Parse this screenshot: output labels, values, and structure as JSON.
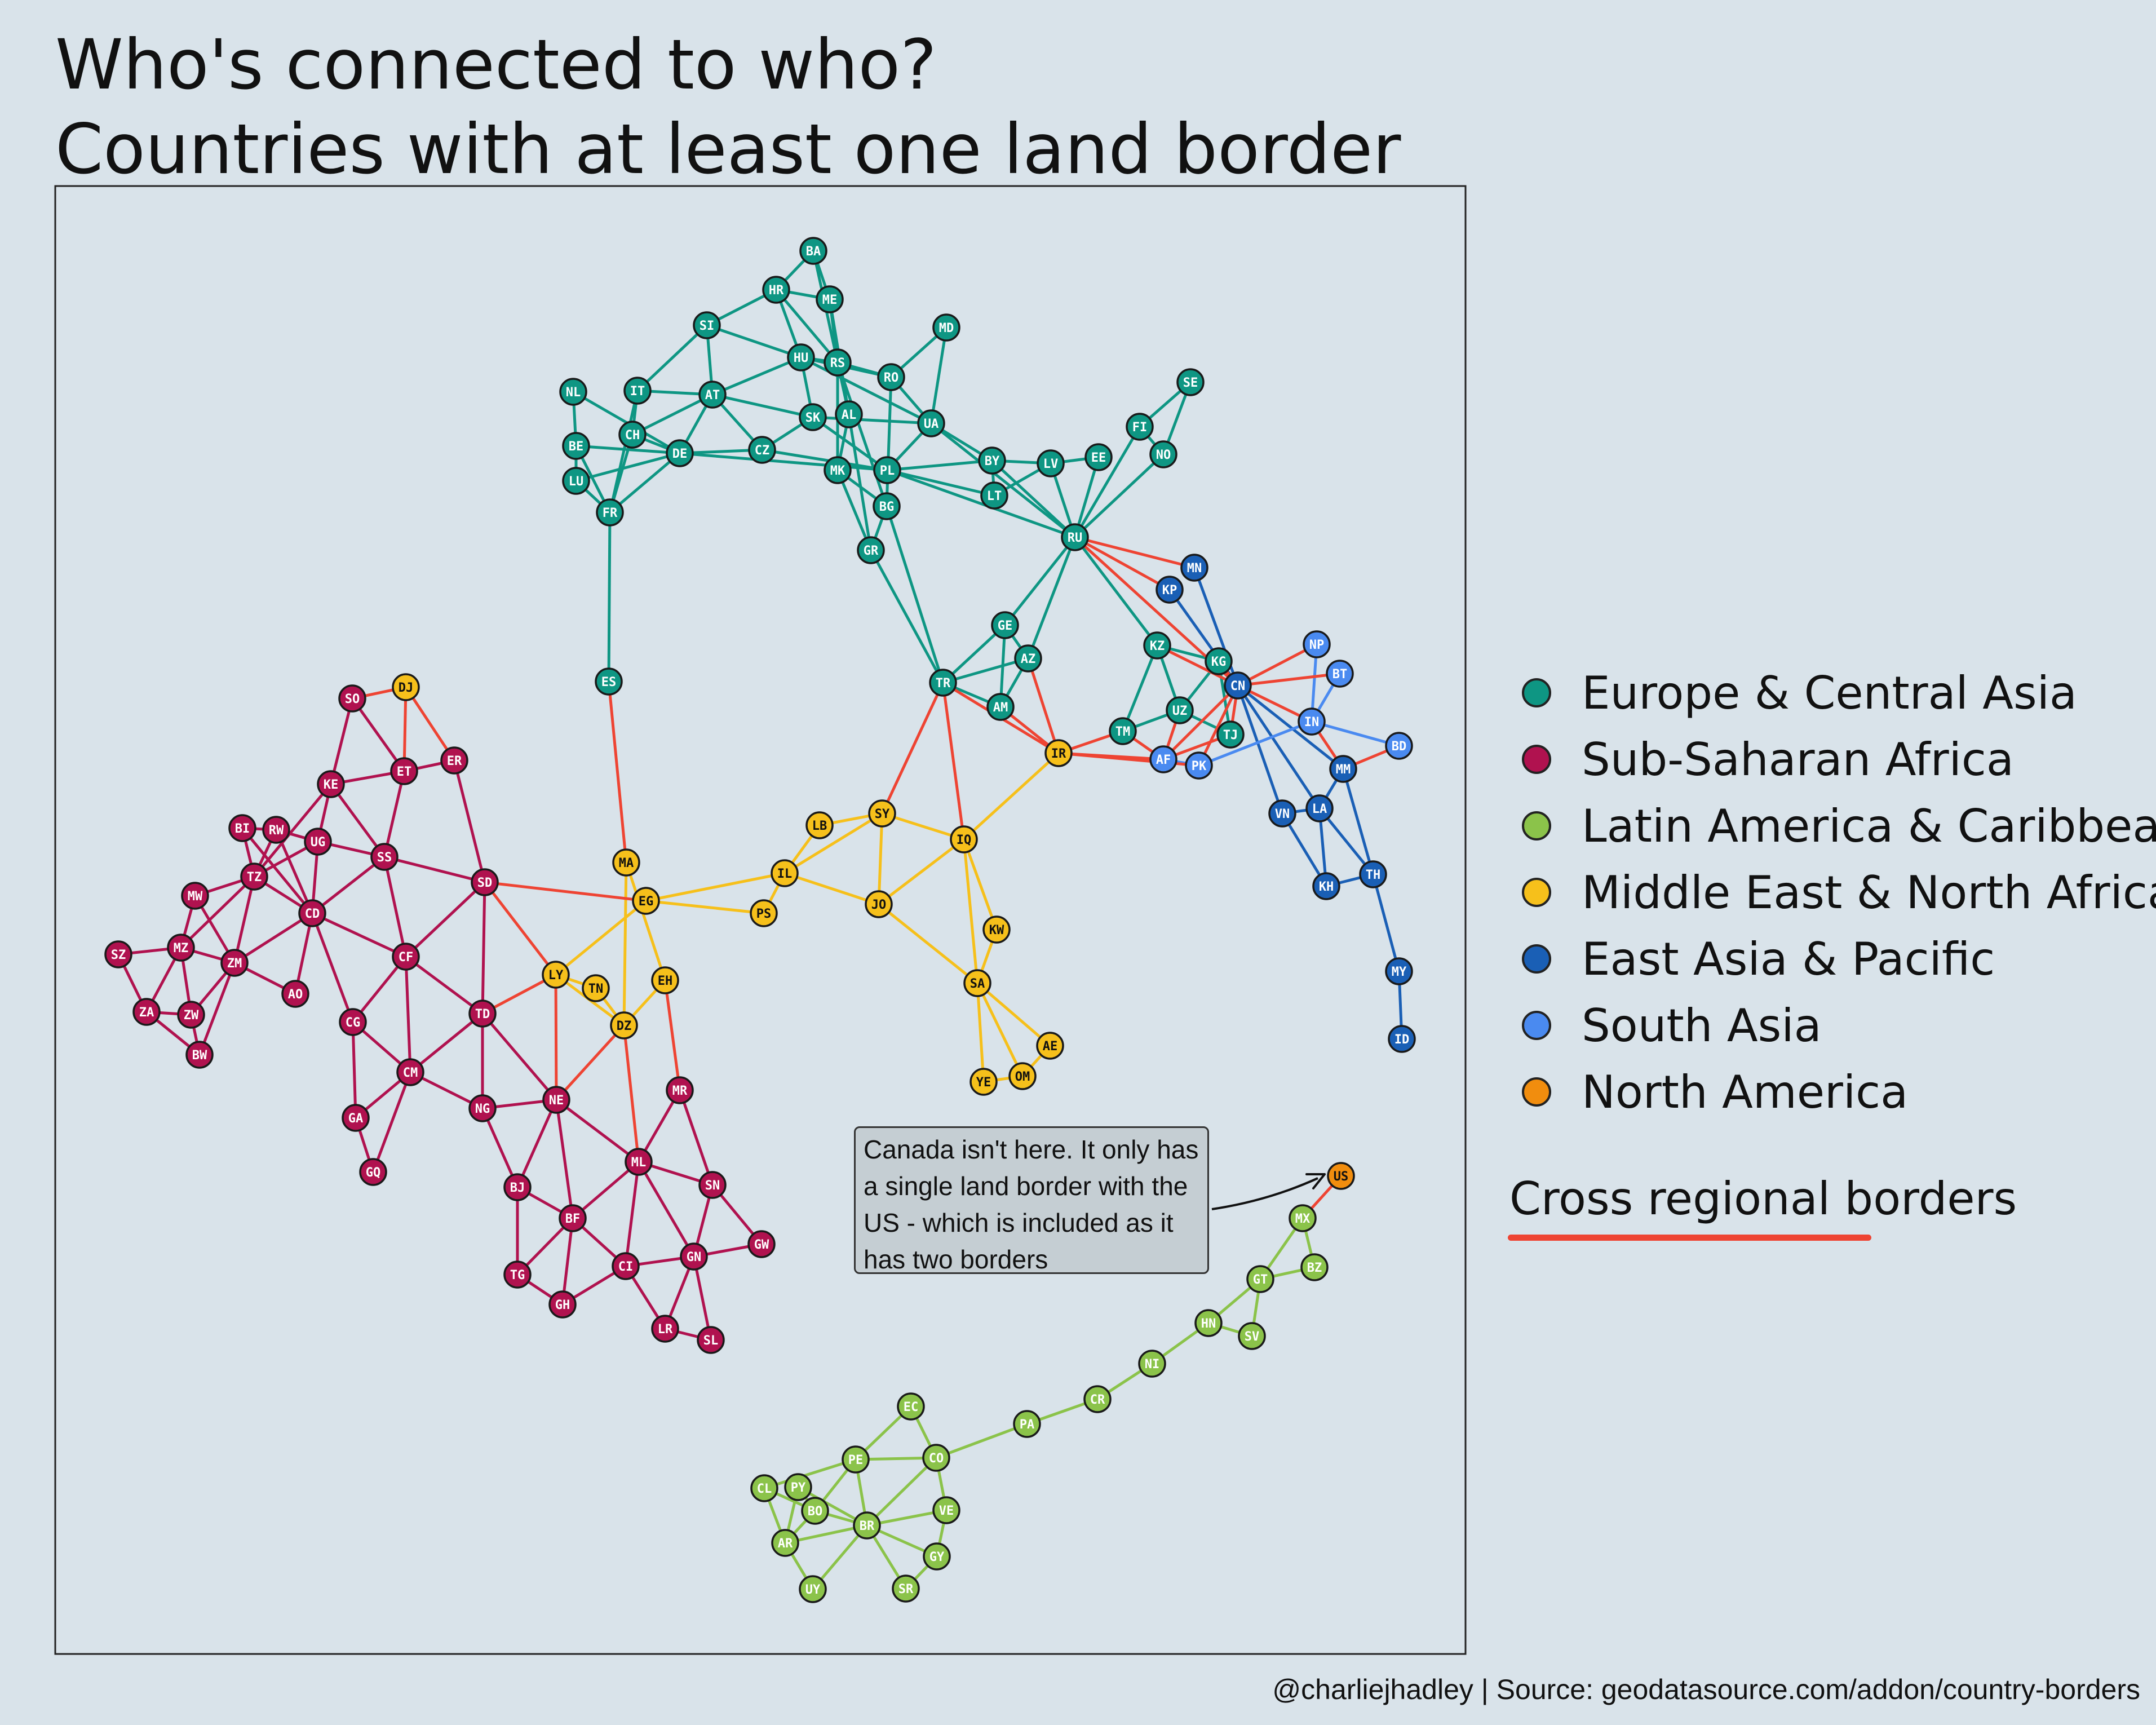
{
  "title": {
    "line1": "Who's connected to who?",
    "line2": "Countries with at least one land border"
  },
  "legend": [
    {
      "label": "Europe & Central Asia",
      "color": "#0e9683"
    },
    {
      "label": "Sub-Saharan Africa",
      "color": "#b0124f"
    },
    {
      "label": "Latin America & Caribbean",
      "color": "#8bc34a"
    },
    {
      "label": "Middle East & North Africa",
      "color": "#f6c01b"
    },
    {
      "label": "East Asia & Pacific",
      "color": "#1a5fb5"
    },
    {
      "label": "South Asia",
      "color": "#4a8af0"
    },
    {
      "label": "North America",
      "color": "#f18d0e"
    }
  ],
  "cross_label": "Cross regional borders",
  "cross_color": "#ee4433",
  "annotation": {
    "lines": [
      "Canada isn't here. It only has",
      "a single land border with the",
      "US - which is included as it",
      "has two borders"
    ]
  },
  "credit": "@charliejhadley | Source: geodatasource.com/addon/country-borders",
  "regions": {
    "ECA": "#0e9683",
    "SSA": "#b0124f",
    "LAC": "#8bc34a",
    "MENA": "#f6c01b",
    "EAP": "#1a5fb5",
    "SA": "#4a8af0",
    "NA": "#f18d0e"
  },
  "nodes": [
    {
      "id": "BA",
      "r": "ECA"
    },
    {
      "id": "HR",
      "r": "ECA"
    },
    {
      "id": "ME",
      "r": "ECA"
    },
    {
      "id": "SI",
      "r": "ECA"
    },
    {
      "id": "HU",
      "r": "ECA"
    },
    {
      "id": "RS",
      "r": "ECA"
    },
    {
      "id": "MD",
      "r": "ECA"
    },
    {
      "id": "RO",
      "r": "ECA"
    },
    {
      "id": "SE",
      "r": "ECA"
    },
    {
      "id": "NL",
      "r": "ECA"
    },
    {
      "id": "IT",
      "r": "ECA"
    },
    {
      "id": "AT",
      "r": "ECA"
    },
    {
      "id": "SK",
      "r": "ECA"
    },
    {
      "id": "AL",
      "r": "ECA"
    },
    {
      "id": "UA",
      "r": "ECA"
    },
    {
      "id": "FI",
      "r": "ECA"
    },
    {
      "id": "BE",
      "r": "ECA"
    },
    {
      "id": "CH",
      "r": "ECA"
    },
    {
      "id": "DE",
      "r": "ECA"
    },
    {
      "id": "CZ",
      "r": "ECA"
    },
    {
      "id": "MK",
      "r": "ECA"
    },
    {
      "id": "PL",
      "r": "ECA"
    },
    {
      "id": "BY",
      "r": "ECA"
    },
    {
      "id": "LV",
      "r": "ECA"
    },
    {
      "id": "EE",
      "r": "ECA"
    },
    {
      "id": "NO",
      "r": "ECA"
    },
    {
      "id": "LU",
      "r": "ECA"
    },
    {
      "id": "LT",
      "r": "ECA"
    },
    {
      "id": "FR",
      "r": "ECA"
    },
    {
      "id": "BG",
      "r": "ECA"
    },
    {
      "id": "RU",
      "r": "ECA"
    },
    {
      "id": "GR",
      "r": "ECA"
    },
    {
      "id": "GE",
      "r": "ECA"
    },
    {
      "id": "KZ",
      "r": "ECA"
    },
    {
      "id": "KG",
      "r": "ECA"
    },
    {
      "id": "AZ",
      "r": "ECA"
    },
    {
      "id": "ES",
      "r": "ECA"
    },
    {
      "id": "TR",
      "r": "ECA"
    },
    {
      "id": "AM",
      "r": "ECA"
    },
    {
      "id": "UZ",
      "r": "ECA"
    },
    {
      "id": "TM",
      "r": "ECA"
    },
    {
      "id": "TJ",
      "r": "ECA"
    },
    {
      "id": "MN",
      "r": "EAP"
    },
    {
      "id": "KP",
      "r": "EAP"
    },
    {
      "id": "CN",
      "r": "EAP"
    },
    {
      "id": "MM",
      "r": "EAP"
    },
    {
      "id": "VN",
      "r": "EAP"
    },
    {
      "id": "LA",
      "r": "EAP"
    },
    {
      "id": "KH",
      "r": "EAP"
    },
    {
      "id": "TH",
      "r": "EAP"
    },
    {
      "id": "MY",
      "r": "EAP"
    },
    {
      "id": "ID",
      "r": "EAP"
    },
    {
      "id": "NP",
      "r": "SA"
    },
    {
      "id": "BT",
      "r": "SA"
    },
    {
      "id": "IN",
      "r": "SA"
    },
    {
      "id": "BD",
      "r": "SA"
    },
    {
      "id": "AF",
      "r": "SA"
    },
    {
      "id": "PK",
      "r": "SA"
    },
    {
      "id": "DJ",
      "r": "MENA"
    },
    {
      "id": "IR",
      "r": "MENA"
    },
    {
      "id": "LB",
      "r": "MENA"
    },
    {
      "id": "SY",
      "r": "MENA"
    },
    {
      "id": "IQ",
      "r": "MENA"
    },
    {
      "id": "MA",
      "r": "MENA"
    },
    {
      "id": "IL",
      "r": "MENA"
    },
    {
      "id": "EG",
      "r": "MENA"
    },
    {
      "id": "PS",
      "r": "MENA"
    },
    {
      "id": "JO",
      "r": "MENA"
    },
    {
      "id": "KW",
      "r": "MENA"
    },
    {
      "id": "LY",
      "r": "MENA"
    },
    {
      "id": "TN",
      "r": "MENA"
    },
    {
      "id": "EH",
      "r": "MENA"
    },
    {
      "id": "DZ",
      "r": "MENA"
    },
    {
      "id": "SA",
      "r": "MENA"
    },
    {
      "id": "AE",
      "r": "MENA"
    },
    {
      "id": "YE",
      "r": "MENA"
    },
    {
      "id": "OM",
      "r": "MENA"
    },
    {
      "id": "SO",
      "r": "SSA"
    },
    {
      "id": "ET",
      "r": "SSA"
    },
    {
      "id": "ER",
      "r": "SSA"
    },
    {
      "id": "KE",
      "r": "SSA"
    },
    {
      "id": "BI",
      "r": "SSA"
    },
    {
      "id": "RW",
      "r": "SSA"
    },
    {
      "id": "UG",
      "r": "SSA"
    },
    {
      "id": "SS",
      "r": "SSA"
    },
    {
      "id": "TZ",
      "r": "SSA"
    },
    {
      "id": "SD",
      "r": "SSA"
    },
    {
      "id": "MW",
      "r": "SSA"
    },
    {
      "id": "CD",
      "r": "SSA"
    },
    {
      "id": "SZ",
      "r": "SSA"
    },
    {
      "id": "MZ",
      "r": "SSA"
    },
    {
      "id": "ZM",
      "r": "SSA"
    },
    {
      "id": "CF",
      "r": "SSA"
    },
    {
      "id": "AO",
      "r": "SSA"
    },
    {
      "id": "ZA",
      "r": "SSA"
    },
    {
      "id": "ZW",
      "r": "SSA"
    },
    {
      "id": "TD",
      "r": "SSA"
    },
    {
      "id": "CG",
      "r": "SSA"
    },
    {
      "id": "BW",
      "r": "SSA"
    },
    {
      "id": "CM",
      "r": "SSA"
    },
    {
      "id": "MR",
      "r": "SSA"
    },
    {
      "id": "GA",
      "r": "SSA"
    },
    {
      "id": "NG",
      "r": "SSA"
    },
    {
      "id": "NE",
      "r": "SSA"
    },
    {
      "id": "GQ",
      "r": "SSA"
    },
    {
      "id": "ML",
      "r": "SSA"
    },
    {
      "id": "BJ",
      "r": "SSA"
    },
    {
      "id": "SN",
      "r": "SSA"
    },
    {
      "id": "BF",
      "r": "SSA"
    },
    {
      "id": "GW",
      "r": "SSA"
    },
    {
      "id": "TG",
      "r": "SSA"
    },
    {
      "id": "CI",
      "r": "SSA"
    },
    {
      "id": "GN",
      "r": "SSA"
    },
    {
      "id": "GH",
      "r": "SSA"
    },
    {
      "id": "LR",
      "r": "SSA"
    },
    {
      "id": "SL",
      "r": "SSA"
    },
    {
      "id": "US",
      "r": "NA"
    },
    {
      "id": "MX",
      "r": "LAC"
    },
    {
      "id": "BZ",
      "r": "LAC"
    },
    {
      "id": "GT",
      "r": "LAC"
    },
    {
      "id": "HN",
      "r": "LAC"
    },
    {
      "id": "SV",
      "r": "LAC"
    },
    {
      "id": "NI",
      "r": "LAC"
    },
    {
      "id": "CR",
      "r": "LAC"
    },
    {
      "id": "PA",
      "r": "LAC"
    },
    {
      "id": "EC",
      "r": "LAC"
    },
    {
      "id": "PE",
      "r": "LAC"
    },
    {
      "id": "CO",
      "r": "LAC"
    },
    {
      "id": "CL",
      "r": "LAC"
    },
    {
      "id": "PY",
      "r": "LAC"
    },
    {
      "id": "BO",
      "r": "LAC"
    },
    {
      "id": "BR",
      "r": "LAC"
    },
    {
      "id": "VE",
      "r": "LAC"
    },
    {
      "id": "AR",
      "r": "LAC"
    },
    {
      "id": "GY",
      "r": "LAC"
    },
    {
      "id": "UY",
      "r": "LAC"
    },
    {
      "id": "SR",
      "r": "LAC"
    }
  ],
  "edges": [
    [
      "BA",
      "HR"
    ],
    [
      "BA",
      "ME"
    ],
    [
      "BA",
      "RS"
    ],
    [
      "HR",
      "ME"
    ],
    [
      "HR",
      "SI"
    ],
    [
      "HR",
      "HU"
    ],
    [
      "HR",
      "RS"
    ],
    [
      "ME",
      "RS"
    ],
    [
      "ME",
      "AL"
    ],
    [
      "SI",
      "AT"
    ],
    [
      "SI",
      "IT"
    ],
    [
      "SI",
      "HU"
    ],
    [
      "HU",
      "AT"
    ],
    [
      "HU",
      "SK"
    ],
    [
      "HU",
      "RS"
    ],
    [
      "HU",
      "RO"
    ],
    [
      "HU",
      "UA"
    ],
    [
      "RS",
      "RO"
    ],
    [
      "RS",
      "MK"
    ],
    [
      "RS",
      "BG"
    ],
    [
      "RS",
      "AL"
    ],
    [
      "MD",
      "RO"
    ],
    [
      "MD",
      "UA"
    ],
    [
      "RO",
      "UA"
    ],
    [
      "RO",
      "BG"
    ],
    [
      "SE",
      "FI"
    ],
    [
      "SE",
      "NO"
    ],
    [
      "NL",
      "DE"
    ],
    [
      "NL",
      "BE"
    ],
    [
      "IT",
      "AT"
    ],
    [
      "IT",
      "CH"
    ],
    [
      "IT",
      "FR"
    ],
    [
      "AT",
      "DE"
    ],
    [
      "AT",
      "CH"
    ],
    [
      "AT",
      "CZ"
    ],
    [
      "AT",
      "SK"
    ],
    [
      "SK",
      "CZ"
    ],
    [
      "SK",
      "PL"
    ],
    [
      "SK",
      "UA"
    ],
    [
      "AL",
      "MK"
    ],
    [
      "AL",
      "GR"
    ],
    [
      "UA",
      "PL"
    ],
    [
      "UA",
      "BY"
    ],
    [
      "UA",
      "RU"
    ],
    [
      "FI",
      "NO"
    ],
    [
      "FI",
      "RU"
    ],
    [
      "NO",
      "RU"
    ],
    [
      "BE",
      "DE"
    ],
    [
      "BE",
      "LU"
    ],
    [
      "BE",
      "FR"
    ],
    [
      "CH",
      "DE"
    ],
    [
      "CH",
      "FR"
    ],
    [
      "DE",
      "CZ"
    ],
    [
      "DE",
      "PL"
    ],
    [
      "DE",
      "FR"
    ],
    [
      "DE",
      "LU"
    ],
    [
      "CZ",
      "PL"
    ],
    [
      "MK",
      "BG"
    ],
    [
      "MK",
      "GR"
    ],
    [
      "PL",
      "BY"
    ],
    [
      "PL",
      "LT"
    ],
    [
      "PL",
      "RU"
    ],
    [
      "BY",
      "LV"
    ],
    [
      "BY",
      "LT"
    ],
    [
      "BY",
      "RU"
    ],
    [
      "LV",
      "EE"
    ],
    [
      "LV",
      "LT"
    ],
    [
      "LV",
      "RU"
    ],
    [
      "EE",
      "RU"
    ],
    [
      "LU",
      "FR"
    ],
    [
      "FR",
      "ES"
    ],
    [
      "BG",
      "GR"
    ],
    [
      "BG",
      "TR"
    ],
    [
      "GR",
      "TR"
    ],
    [
      "RU",
      "GE"
    ],
    [
      "RU",
      "AZ"
    ],
    [
      "RU",
      "KZ"
    ],
    [
      "GE",
      "AZ"
    ],
    [
      "GE",
      "AM"
    ],
    [
      "GE",
      "TR"
    ],
    [
      "AZ",
      "AM"
    ],
    [
      "AZ",
      "TR"
    ],
    [
      "AM",
      "TR"
    ],
    [
      "KZ",
      "KG"
    ],
    [
      "KZ",
      "UZ"
    ],
    [
      "KZ",
      "TM"
    ],
    [
      "KG",
      "UZ"
    ],
    [
      "KG",
      "TJ"
    ],
    [
      "UZ",
      "TM"
    ],
    [
      "UZ",
      "TJ"
    ],
    [
      "MN",
      "CN"
    ],
    [
      "KP",
      "CN"
    ],
    [
      "CN",
      "VN"
    ],
    [
      "CN",
      "LA"
    ],
    [
      "CN",
      "MM"
    ],
    [
      "VN",
      "LA"
    ],
    [
      "VN",
      "KH"
    ],
    [
      "LA",
      "KH"
    ],
    [
      "LA",
      "MM"
    ],
    [
      "LA",
      "TH"
    ],
    [
      "MM",
      "TH"
    ],
    [
      "KH",
      "TH"
    ],
    [
      "TH",
      "MY"
    ],
    [
      "MY",
      "ID"
    ],
    [
      "NP",
      "IN"
    ],
    [
      "BT",
      "IN"
    ],
    [
      "IN",
      "BD"
    ],
    [
      "IN",
      "PK"
    ],
    [
      "MM",
      "BD"
    ],
    [
      "CN",
      "NP"
    ],
    [
      "CN",
      "BT"
    ],
    [
      "CN",
      "IN"
    ],
    [
      "CN",
      "PK"
    ],
    [
      "AF",
      "PK"
    ],
    [
      "IN",
      "MM"
    ],
    [
      "SY",
      "LB"
    ],
    [
      "SY",
      "IL"
    ],
    [
      "SY",
      "JO"
    ],
    [
      "SY",
      "IQ"
    ],
    [
      "LB",
      "IL"
    ],
    [
      "IL",
      "EG"
    ],
    [
      "IL",
      "JO"
    ],
    [
      "IL",
      "PS"
    ],
    [
      "EG",
      "PS"
    ],
    [
      "EG",
      "LY"
    ],
    [
      "JO",
      "IQ"
    ],
    [
      "JO",
      "SA"
    ],
    [
      "IQ",
      "KW"
    ],
    [
      "IQ",
      "SA"
    ],
    [
      "IQ",
      "IR"
    ],
    [
      "KW",
      "SA"
    ],
    [
      "SA",
      "AE"
    ],
    [
      "SA",
      "OM"
    ],
    [
      "SA",
      "YE"
    ],
    [
      "YE",
      "OM"
    ],
    [
      "AE",
      "OM"
    ],
    [
      "MA",
      "DZ"
    ],
    [
      "MA",
      "EH"
    ],
    [
      "LY",
      "TN"
    ],
    [
      "LY",
      "DZ"
    ],
    [
      "TN",
      "DZ"
    ],
    [
      "EH",
      "DZ"
    ],
    [
      "SO",
      "ET"
    ],
    [
      "SO",
      "KE"
    ],
    [
      "ET",
      "ER"
    ],
    [
      "ET",
      "KE"
    ],
    [
      "ET",
      "SS"
    ],
    [
      "ER",
      "SD"
    ],
    [
      "KE",
      "UG"
    ],
    [
      "KE",
      "SS"
    ],
    [
      "KE",
      "TZ"
    ],
    [
      "BI",
      "RW"
    ],
    [
      "BI",
      "TZ"
    ],
    [
      "BI",
      "CD"
    ],
    [
      "RW",
      "UG"
    ],
    [
      "RW",
      "TZ"
    ],
    [
      "RW",
      "CD"
    ],
    [
      "UG",
      "SS"
    ],
    [
      "UG",
      "TZ"
    ],
    [
      "UG",
      "CD"
    ],
    [
      "SS",
      "SD"
    ],
    [
      "SS",
      "CD"
    ],
    [
      "SS",
      "CF"
    ],
    [
      "TZ",
      "MW"
    ],
    [
      "TZ",
      "MZ"
    ],
    [
      "TZ",
      "ZM"
    ],
    [
      "TZ",
      "CD"
    ],
    [
      "SD",
      "CF"
    ],
    [
      "SD",
      "TD"
    ],
    [
      "MW",
      "MZ"
    ],
    [
      "MW",
      "ZM"
    ],
    [
      "CD",
      "ZM"
    ],
    [
      "CD",
      "AO"
    ],
    [
      "CD",
      "CG"
    ],
    [
      "CD",
      "CF"
    ],
    [
      "SZ",
      "MZ"
    ],
    [
      "SZ",
      "ZA"
    ],
    [
      "MZ",
      "ZA"
    ],
    [
      "MZ",
      "ZW"
    ],
    [
      "MZ",
      "ZM"
    ],
    [
      "ZM",
      "ZW"
    ],
    [
      "ZM",
      "AO"
    ],
    [
      "ZM",
      "BW"
    ],
    [
      "CF",
      "TD"
    ],
    [
      "CF",
      "CM"
    ],
    [
      "CF",
      "CG"
    ],
    [
      "ZA",
      "ZW"
    ],
    [
      "ZA",
      "BW"
    ],
    [
      "ZW",
      "BW"
    ],
    [
      "TD",
      "CM"
    ],
    [
      "TD",
      "NG"
    ],
    [
      "TD",
      "NE"
    ],
    [
      "CG",
      "CM"
    ],
    [
      "CG",
      "GA"
    ],
    [
      "CM",
      "GA"
    ],
    [
      "CM",
      "GQ"
    ],
    [
      "CM",
      "NG"
    ],
    [
      "GA",
      "GQ"
    ],
    [
      "NG",
      "NE"
    ],
    [
      "NG",
      "BJ"
    ],
    [
      "NE",
      "ML"
    ],
    [
      "NE",
      "BF"
    ],
    [
      "NE",
      "BJ"
    ],
    [
      "ML",
      "MR"
    ],
    [
      "ML",
      "SN"
    ],
    [
      "ML",
      "GN"
    ],
    [
      "ML",
      "CI"
    ],
    [
      "ML",
      "BF"
    ],
    [
      "MR",
      "SN"
    ],
    [
      "SN",
      "GW"
    ],
    [
      "SN",
      "GN"
    ],
    [
      "BJ",
      "BF"
    ],
    [
      "BJ",
      "TG"
    ],
    [
      "BF",
      "TG"
    ],
    [
      "BF",
      "GH"
    ],
    [
      "BF",
      "CI"
    ],
    [
      "TG",
      "GH"
    ],
    [
      "GH",
      "CI"
    ],
    [
      "CI",
      "GN"
    ],
    [
      "CI",
      "LR"
    ],
    [
      "GN",
      "GW"
    ],
    [
      "GN",
      "LR"
    ],
    [
      "GN",
      "SL"
    ],
    [
      "LR",
      "SL"
    ],
    [
      "MX",
      "BZ"
    ],
    [
      "MX",
      "GT"
    ],
    [
      "BZ",
      "GT"
    ],
    [
      "GT",
      "HN"
    ],
    [
      "GT",
      "SV"
    ],
    [
      "HN",
      "SV"
    ],
    [
      "HN",
      "NI"
    ],
    [
      "NI",
      "CR"
    ],
    [
      "CR",
      "PA"
    ],
    [
      "PA",
      "CO"
    ],
    [
      "EC",
      "CO"
    ],
    [
      "EC",
      "PE"
    ],
    [
      "PE",
      "CO"
    ],
    [
      "PE",
      "BR"
    ],
    [
      "PE",
      "BO"
    ],
    [
      "PE",
      "CL"
    ],
    [
      "CO",
      "BR"
    ],
    [
      "CO",
      "VE"
    ],
    [
      "CL",
      "BO"
    ],
    [
      "CL",
      "AR"
    ],
    [
      "PY",
      "BO"
    ],
    [
      "PY",
      "AR"
    ],
    [
      "PY",
      "BR"
    ],
    [
      "BO",
      "BR"
    ],
    [
      "BO",
      "AR"
    ],
    [
      "BR",
      "VE"
    ],
    [
      "BR",
      "GY"
    ],
    [
      "BR",
      "AR"
    ],
    [
      "BR",
      "UY"
    ],
    [
      "BR",
      "SR"
    ],
    [
      "VE",
      "GY"
    ],
    [
      "AR",
      "UY"
    ],
    [
      "GY",
      "SR"
    ],
    [
      "ES",
      "MA"
    ],
    [
      "TR",
      "SY"
    ],
    [
      "TR",
      "IQ"
    ],
    [
      "TR",
      "IR"
    ],
    [
      "AM",
      "IR"
    ],
    [
      "AZ",
      "IR"
    ],
    [
      "TM",
      "IR"
    ],
    [
      "TM",
      "AF"
    ],
    [
      "UZ",
      "AF"
    ],
    [
      "TJ",
      "AF"
    ],
    [
      "TJ",
      "CN"
    ],
    [
      "KG",
      "CN"
    ],
    [
      "KZ",
      "CN"
    ],
    [
      "RU",
      "CN"
    ],
    [
      "RU",
      "MN"
    ],
    [
      "RU",
      "KP"
    ],
    [
      "IR",
      "AF"
    ],
    [
      "IR",
      "PK"
    ],
    [
      "AF",
      "CN"
    ],
    [
      "EG",
      "SD"
    ],
    [
      "LY",
      "SD"
    ],
    [
      "LY",
      "TD"
    ],
    [
      "LY",
      "NE"
    ],
    [
      "DZ",
      "NE"
    ],
    [
      "DZ",
      "ML"
    ],
    [
      "EH",
      "MR"
    ],
    [
      "DJ",
      "SO"
    ],
    [
      "DJ",
      "ET"
    ],
    [
      "DJ",
      "ER"
    ],
    [
      "MX",
      "US"
    ]
  ]
}
